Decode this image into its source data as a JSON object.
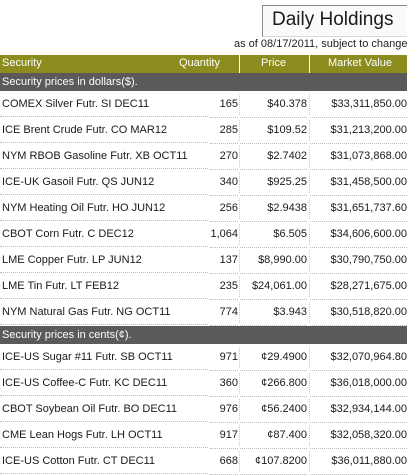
{
  "header": {
    "title": "Daily Holdings",
    "subtitle": "as of 08/17/2011, subject to change"
  },
  "columns": {
    "security": "Security",
    "quantity": "Quantity",
    "price": "Price",
    "market_value": "Market Value"
  },
  "sections": [
    {
      "title": "Security prices in dollars($).",
      "rows": [
        {
          "security": "COMEX Silver Futr. SI DEC11",
          "quantity": "165",
          "price": "$40.378",
          "market_value": "$33,311,850.00"
        },
        {
          "security": "ICE Brent Crude Futr. CO MAR12",
          "quantity": "285",
          "price": "$109.52",
          "market_value": "$31,213,200.00"
        },
        {
          "security": "NYM RBOB Gasoline Futr. XB OCT11",
          "quantity": "270",
          "price": "$2.7402",
          "market_value": "$31,073,868.00"
        },
        {
          "security": "ICE-UK Gasoil Futr. QS JUN12",
          "quantity": "340",
          "price": "$925.25",
          "market_value": "$31,458,500.00"
        },
        {
          "security": "NYM Heating Oil Futr. HO JUN12",
          "quantity": "256",
          "price": "$2.9438",
          "market_value": "$31,651,737.60"
        },
        {
          "security": "CBOT Corn Futr. C DEC12",
          "quantity": "1,064",
          "price": "$6.505",
          "market_value": "$34,606,600.00"
        },
        {
          "security": "LME Copper Futr. LP JUN12",
          "quantity": "137",
          "price": "$8,990.00",
          "market_value": "$30,790,750.00"
        },
        {
          "security": "LME Tin Futr. LT FEB12",
          "quantity": "235",
          "price": "$24,061.00",
          "market_value": "$28,271,675.00"
        },
        {
          "security": "NYM Natural Gas Futr. NG OCT11",
          "quantity": "774",
          "price": "$3.943",
          "market_value": "$30,518,820.00"
        }
      ]
    },
    {
      "title": "Security prices in cents(¢).",
      "rows": [
        {
          "security": "ICE-US Sugar #11 Futr. SB OCT11",
          "quantity": "971",
          "price": "¢29.4900",
          "market_value": "$32,070,964.80"
        },
        {
          "security": "ICE-US Coffee-C Futr. KC DEC11",
          "quantity": "360",
          "price": "¢266.800",
          "market_value": "$36,018,000.00"
        },
        {
          "security": "CBOT Soybean Oil Futr. BO DEC11",
          "quantity": "976",
          "price": "¢56.2400",
          "market_value": "$32,934,144.00"
        },
        {
          "security": "CME Lean Hogs Futr. LH OCT11",
          "quantity": "917",
          "price": "¢87.400",
          "market_value": "$32,058,320.00"
        },
        {
          "security": "ICE-US Cotton Futr. CT DEC11",
          "quantity": "668",
          "price": "¢107.8200",
          "market_value": "$36,011,880.00"
        }
      ]
    }
  ]
}
